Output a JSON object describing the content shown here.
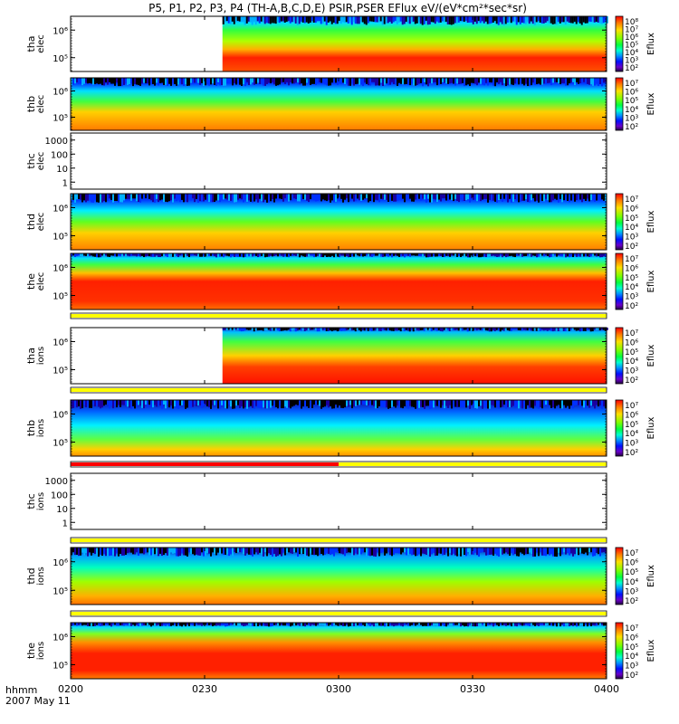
{
  "header": {
    "title": "P5, P1, P2, P3, P4 (TH-A,B,C,D,E) PSIR,PSER EFlux eV/(eV*cm²*sec*sr)"
  },
  "footer": {
    "time_label": "hhmm",
    "date_label": "2007 May 11"
  },
  "colors": {
    "flag_yellow": "#ffff00",
    "flag_red": "#ff0000",
    "frame": "#000000"
  },
  "chart_data": {
    "type": "heatmap",
    "x_axis": {
      "ticks": [
        "0200",
        "0230",
        "0300",
        "0330",
        "0400"
      ],
      "range": [
        "02:00",
        "04:00"
      ]
    },
    "colorbar": {
      "label": "Eflux",
      "colormap": "rainbow (black-purple-blue-cyan-green-yellow-red)"
    },
    "panels": [
      {
        "id": "tha-elec",
        "ylabel": [
          "tha",
          "elec"
        ],
        "yticks": [
          "10⁶",
          "10⁵"
        ],
        "cb_ticks": [
          "10⁸",
          "10⁷",
          "10⁶",
          "10⁵",
          "10⁴",
          "10³",
          "10²"
        ],
        "data_start": "02:34",
        "bands": "high-energy green/cyan, low-energy red",
        "flag": null
      },
      {
        "id": "thb-elec",
        "ylabel": [
          "thb",
          "elec"
        ],
        "yticks": [
          "10⁶",
          "10⁵"
        ],
        "cb_ticks": [
          "10⁷",
          "10⁶",
          "10⁵",
          "10⁴",
          "10³",
          "10²"
        ],
        "data_start": "02:00",
        "bands": "noisy blue top, cyan/green middle, orange bottom",
        "flag": null
      },
      {
        "id": "thc-elec",
        "ylabel": [
          "thc",
          "elec"
        ],
        "yticks": [
          "1000",
          "100",
          "10",
          "1"
        ],
        "cb_ticks": [],
        "data_start": null,
        "bands": "empty",
        "flag": null
      },
      {
        "id": "thd-elec",
        "ylabel": [
          "thd",
          "elec"
        ],
        "yticks": [
          "10⁶",
          "10⁵"
        ],
        "cb_ticks": [
          "10⁷",
          "10⁶",
          "10⁵",
          "10⁴",
          "10³",
          "10²"
        ],
        "data_start": "02:00",
        "bands": "noisy blue top, cyan/green, yellow/orange bottom",
        "flag": null
      },
      {
        "id": "the-elec",
        "ylabel": [
          "the",
          "elec"
        ],
        "yticks": [
          "10⁶",
          "10⁵"
        ],
        "cb_ticks": [
          "10⁷",
          "10⁶",
          "10⁵",
          "10⁴",
          "10³",
          "10²"
        ],
        "data_start": "02:00",
        "bands": "cyan top, orange, red core",
        "flag": "yellow"
      },
      {
        "id": "tha-ions",
        "ylabel": [
          "tha",
          "ions"
        ],
        "yticks": [
          "10⁶",
          "10⁵"
        ],
        "cb_ticks": [
          "10⁷",
          "10⁶",
          "10⁵",
          "10⁴",
          "10³",
          "10²"
        ],
        "data_start": "02:34",
        "bands": "green/yellow/red",
        "flag": "yellow"
      },
      {
        "id": "thb-ions",
        "ylabel": [
          "thb",
          "ions"
        ],
        "yticks": [
          "10⁶",
          "10⁵"
        ],
        "cb_ticks": [
          "10⁷",
          "10⁶",
          "10⁵",
          "10⁴",
          "10³",
          "10²"
        ],
        "data_start": "02:00",
        "bands": "noisy blue/cyan top, green/yellow/orange bottom",
        "flag": "red-until-03:00-then-yellow"
      },
      {
        "id": "thc-ions",
        "ylabel": [
          "thc",
          "ions"
        ],
        "yticks": [
          "1000",
          "100",
          "10",
          "1"
        ],
        "cb_ticks": [],
        "data_start": null,
        "bands": "empty",
        "flag": "yellow"
      },
      {
        "id": "thd-ions",
        "ylabel": [
          "thd",
          "ions"
        ],
        "yticks": [
          "10⁶",
          "10⁵"
        ],
        "cb_ticks": [
          "10⁷",
          "10⁶",
          "10⁵",
          "10⁴",
          "10³",
          "10²"
        ],
        "data_start": "02:00",
        "bands": "noisy blue top, cyan/green, yellow/orange bottom",
        "flag": "yellow"
      },
      {
        "id": "the-ions",
        "ylabel": [
          "the",
          "ions"
        ],
        "yticks": [
          "10⁶",
          "10⁵"
        ],
        "cb_ticks": [
          "10⁷",
          "10⁶",
          "10⁵",
          "10⁴",
          "10³",
          "10²"
        ],
        "data_start": "02:00",
        "bands": "cyan top, orange/red core",
        "flag": null
      }
    ]
  }
}
